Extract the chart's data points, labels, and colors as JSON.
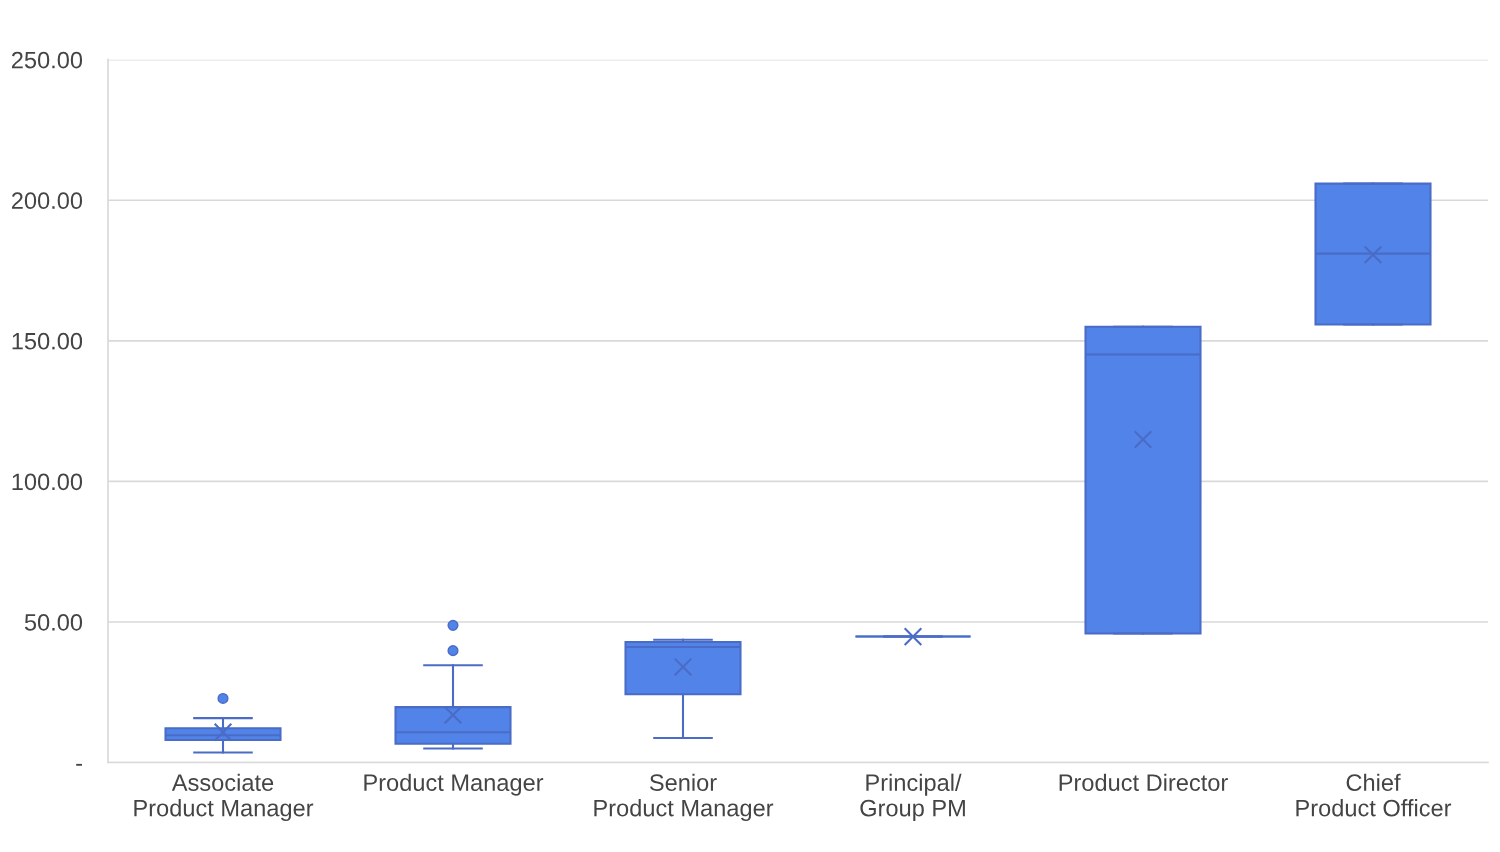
{
  "chart_data": {
    "type": "box",
    "categories": [
      "Associate\nProduct Manager",
      "Product Manager",
      "Senior\nProduct Manager",
      "Principal/\nGroup PM",
      "Product Director",
      "Chief\nProduct Officer"
    ],
    "boxes": [
      {
        "low": 3.6,
        "q1": 8.0,
        "median": 9.7,
        "q3": 12.2,
        "high": 15.8,
        "mean": 10.8,
        "outliers": [
          22.8
        ]
      },
      {
        "low": 5.0,
        "q1": 6.7,
        "median": 10.8,
        "q3": 19.7,
        "high": 34.6,
        "mean": 16.9,
        "outliers": [
          39.8,
          48.8
        ]
      },
      {
        "low": 8.7,
        "q1": 24.3,
        "median": 41.1,
        "q3": 42.9,
        "high": 43.7,
        "mean": 34.0
      },
      {
        "low": 44.8,
        "q1": 44.8,
        "median": 44.8,
        "q3": 44.8,
        "high": 44.8,
        "mean": 44.8
      },
      {
        "low": 45.9,
        "q1": 45.9,
        "median": 145.1,
        "q3": 155.0,
        "high": 155.0,
        "mean": 114.9
      },
      {
        "low": 155.8,
        "q1": 155.8,
        "median": 181.0,
        "q3": 205.9,
        "high": 205.9,
        "mean": 180.6
      }
    ],
    "color": "#5183e8",
    "ylim": [
      0,
      250
    ],
    "yticks": [
      {
        "value": 0,
        "label": "-"
      },
      {
        "value": 50,
        "label": "50.00"
      },
      {
        "value": 100,
        "label": "100.00"
      },
      {
        "value": 150,
        "label": "150.00"
      },
      {
        "value": 200,
        "label": "200.00"
      },
      {
        "value": 250,
        "label": "250.00"
      }
    ],
    "grid": "y"
  }
}
